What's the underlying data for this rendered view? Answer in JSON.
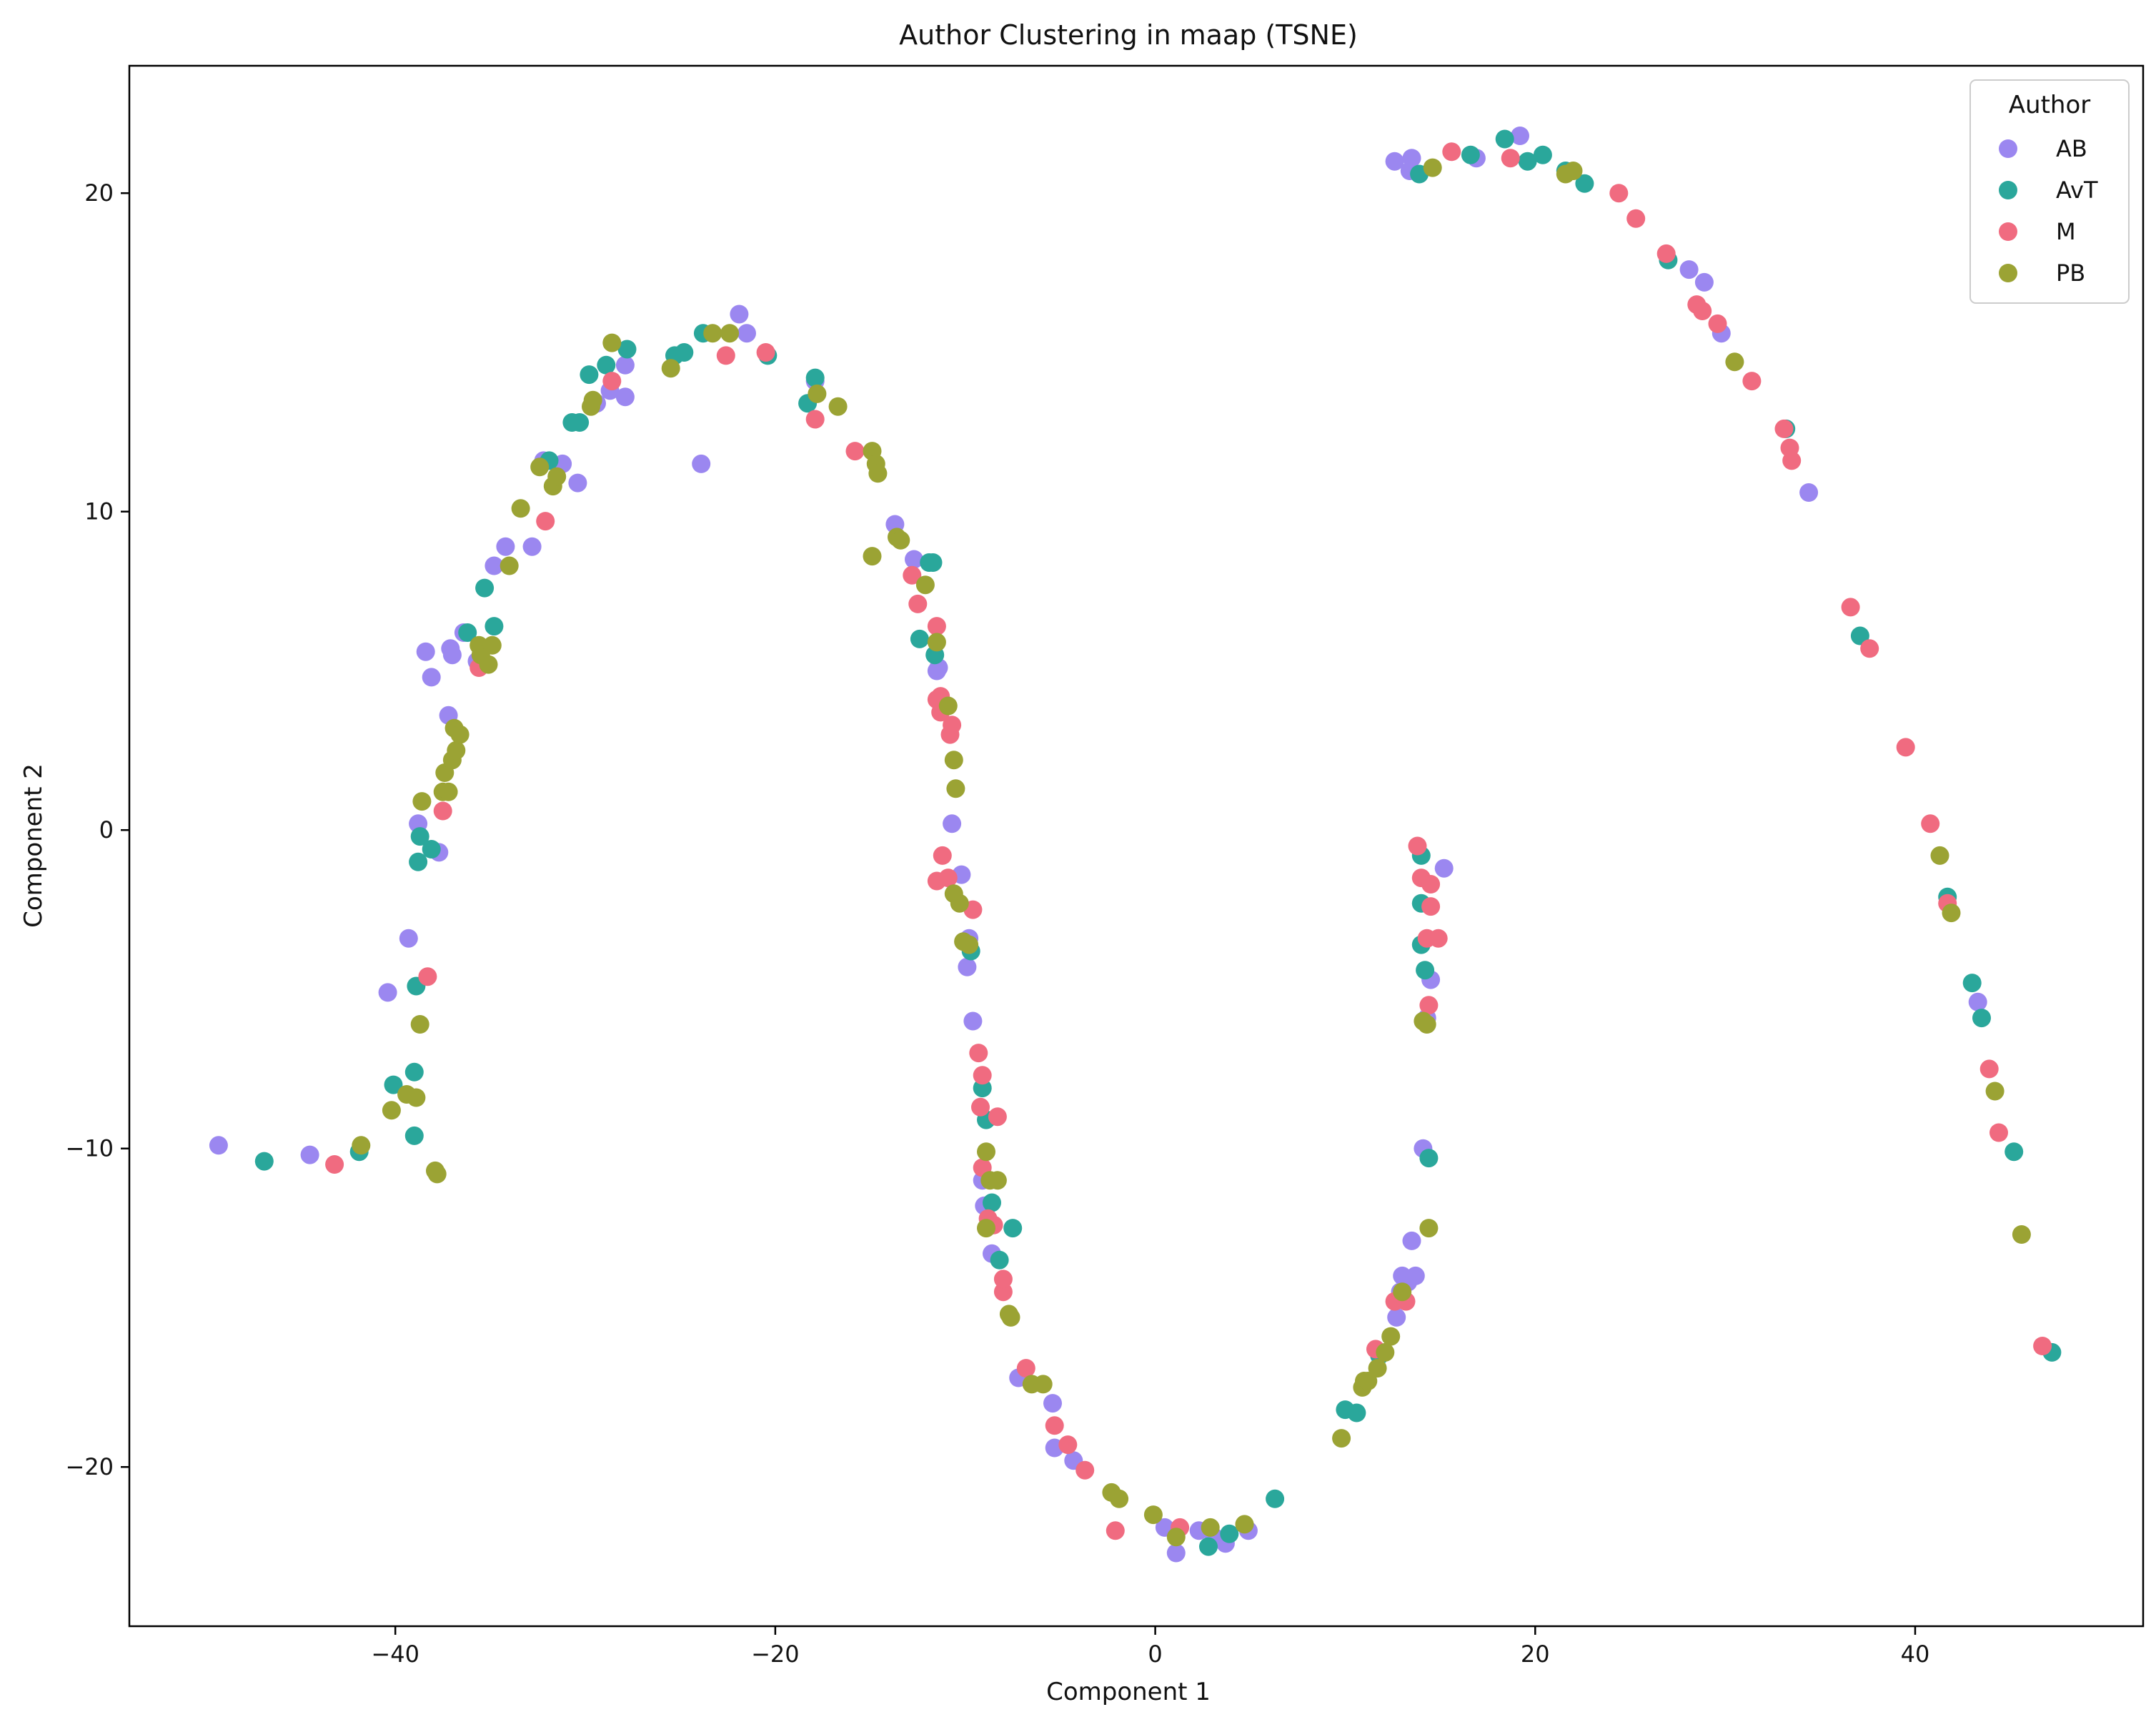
{
  "chart_data": {
    "type": "scatter",
    "title": "Author Clustering in maap (TSNE)",
    "xlabel": "Component 1",
    "ylabel": "Component 2",
    "xlim": [
      -54,
      52
    ],
    "ylim": [
      -25,
      24
    ],
    "xticks": [
      -40,
      -20,
      0,
      20,
      40
    ],
    "xtick_labels": [
      "−40",
      "−20",
      "0",
      "20",
      "40"
    ],
    "yticks": [
      -20,
      -10,
      0,
      10,
      20
    ],
    "ytick_labels": [
      "−20",
      "−10",
      "0",
      "10",
      "20"
    ],
    "grid": false,
    "legend": {
      "title": "Author",
      "position": "top-right"
    },
    "series": [
      {
        "name": "AB",
        "color": "#9b87f0",
        "points": [
          [
            -49.3,
            -9.9
          ],
          [
            -44.5,
            -10.2
          ],
          [
            -40.4,
            -5.1
          ],
          [
            -39.3,
            -3.4
          ],
          [
            -38.8,
            0.2
          ],
          [
            -38.4,
            5.6
          ],
          [
            -38.1,
            4.8
          ],
          [
            -37.7,
            -0.7
          ],
          [
            -37.2,
            3.6
          ],
          [
            -37.1,
            5.7
          ],
          [
            -37.0,
            5.5
          ],
          [
            -36.4,
            6.2
          ],
          [
            -35.7,
            5.3
          ],
          [
            -34.8,
            8.3
          ],
          [
            -34.2,
            8.9
          ],
          [
            -32.8,
            8.9
          ],
          [
            -32.2,
            11.6
          ],
          [
            -31.2,
            11.5
          ],
          [
            -30.4,
            10.9
          ],
          [
            -29.4,
            13.4
          ],
          [
            -28.7,
            13.8
          ],
          [
            -27.9,
            13.6
          ],
          [
            -27.9,
            14.6
          ],
          [
            -23.9,
            11.5
          ],
          [
            -21.9,
            16.2
          ],
          [
            -21.5,
            15.6
          ],
          [
            -17.9,
            14.1
          ],
          [
            -13.7,
            9.6
          ],
          [
            -12.7,
            8.5
          ],
          [
            -11.5,
            5.0
          ],
          [
            -11.4,
            5.1
          ],
          [
            -10.7,
            0.2
          ],
          [
            -10.2,
            -1.4
          ],
          [
            -9.8,
            -3.4
          ],
          [
            -9.9,
            -4.3
          ],
          [
            -9.6,
            -6.0
          ],
          [
            -9.1,
            -11.0
          ],
          [
            -9.0,
            -11.8
          ],
          [
            -8.6,
            -13.3
          ],
          [
            -7.2,
            -17.2
          ],
          [
            -5.4,
            -18.0
          ],
          [
            -5.3,
            -19.4
          ],
          [
            -4.3,
            -19.8
          ],
          [
            0.5,
            -21.9
          ],
          [
            1.1,
            -22.7
          ],
          [
            2.3,
            -22.0
          ],
          [
            3.1,
            -22.2
          ],
          [
            3.7,
            -22.4
          ],
          [
            4.9,
            -22.0
          ],
          [
            12.7,
            -15.3
          ],
          [
            12.9,
            -14.5
          ],
          [
            13.0,
            -14.0
          ],
          [
            13.3,
            -14.2
          ],
          [
            13.5,
            -12.9
          ],
          [
            13.7,
            -14.0
          ],
          [
            14.1,
            -10.0
          ],
          [
            14.3,
            -5.9
          ],
          [
            14.5,
            -4.7
          ],
          [
            15.2,
            -1.2
          ],
          [
            12.6,
            21.0
          ],
          [
            13.4,
            20.7
          ],
          [
            13.5,
            21.1
          ],
          [
            16.9,
            21.1
          ],
          [
            19.2,
            21.8
          ],
          [
            28.1,
            17.6
          ],
          [
            28.9,
            17.2
          ],
          [
            29.8,
            15.6
          ],
          [
            34.4,
            10.6
          ],
          [
            43.3,
            -5.4
          ]
        ]
      },
      {
        "name": "AvT",
        "color": "#2aa79b",
        "points": [
          [
            -46.9,
            -10.4
          ],
          [
            -41.9,
            -10.1
          ],
          [
            -40.1,
            -8.0
          ],
          [
            -39.0,
            -7.6
          ],
          [
            -39.0,
            -9.6
          ],
          [
            -38.8,
            -1.0
          ],
          [
            -38.7,
            -0.2
          ],
          [
            -38.1,
            -0.6
          ],
          [
            -38.9,
            -4.9
          ],
          [
            -36.2,
            6.2
          ],
          [
            -35.3,
            7.6
          ],
          [
            -34.8,
            6.4
          ],
          [
            -31.9,
            11.6
          ],
          [
            -30.7,
            12.8
          ],
          [
            -30.3,
            12.8
          ],
          [
            -29.8,
            14.3
          ],
          [
            -28.9,
            14.6
          ],
          [
            -27.8,
            15.1
          ],
          [
            -25.3,
            14.9
          ],
          [
            -24.8,
            15.0
          ],
          [
            -23.8,
            15.6
          ],
          [
            -20.4,
            14.9
          ],
          [
            -18.3,
            13.4
          ],
          [
            -17.9,
            14.2
          ],
          [
            -11.9,
            8.4
          ],
          [
            -12.4,
            6.0
          ],
          [
            -11.6,
            5.5
          ],
          [
            -11.7,
            8.4
          ],
          [
            -9.7,
            -3.8
          ],
          [
            -9.1,
            -8.1
          ],
          [
            -8.9,
            -9.1
          ],
          [
            -8.6,
            -11.7
          ],
          [
            -8.2,
            -13.5
          ],
          [
            -7.5,
            -12.5
          ],
          [
            2.8,
            -22.5
          ],
          [
            3.9,
            -22.1
          ],
          [
            6.3,
            -21.0
          ],
          [
            10.0,
            -18.2
          ],
          [
            10.6,
            -18.3
          ],
          [
            11.8,
            -16.5
          ],
          [
            14.0,
            -0.8
          ],
          [
            14.0,
            -2.3
          ],
          [
            14.0,
            -3.6
          ],
          [
            14.2,
            -4.4
          ],
          [
            14.4,
            -10.3
          ],
          [
            13.9,
            20.6
          ],
          [
            16.6,
            21.2
          ],
          [
            18.4,
            21.7
          ],
          [
            19.6,
            21.0
          ],
          [
            20.4,
            21.2
          ],
          [
            21.6,
            20.7
          ],
          [
            22.6,
            20.3
          ],
          [
            27.0,
            17.9
          ],
          [
            33.2,
            12.6
          ],
          [
            37.1,
            6.1
          ],
          [
            41.7,
            -2.1
          ],
          [
            43.0,
            -4.8
          ],
          [
            43.5,
            -5.9
          ],
          [
            45.2,
            -10.1
          ],
          [
            47.2,
            -16.4
          ]
        ]
      },
      {
        "name": "M",
        "color": "#f06b80",
        "points": [
          [
            -43.2,
            -10.5
          ],
          [
            -38.3,
            -4.6
          ],
          [
            -37.5,
            0.6
          ],
          [
            -35.6,
            5.1
          ],
          [
            -32.1,
            9.7
          ],
          [
            -28.6,
            14.1
          ],
          [
            -22.6,
            14.9
          ],
          [
            -20.5,
            15.0
          ],
          [
            -17.9,
            12.9
          ],
          [
            -15.8,
            11.9
          ],
          [
            -12.8,
            8.0
          ],
          [
            -12.5,
            7.1
          ],
          [
            -11.5,
            6.4
          ],
          [
            -11.5,
            4.1
          ],
          [
            -11.3,
            4.2
          ],
          [
            -11.3,
            3.7
          ],
          [
            -10.8,
            3.0
          ],
          [
            -10.7,
            3.3
          ],
          [
            -11.2,
            -0.8
          ],
          [
            -11.5,
            -1.6
          ],
          [
            -10.9,
            -1.5
          ],
          [
            -9.6,
            -2.5
          ],
          [
            -9.3,
            -7.0
          ],
          [
            -9.1,
            -7.7
          ],
          [
            -9.2,
            -8.7
          ],
          [
            -8.3,
            -9.0
          ],
          [
            -9.1,
            -10.6
          ],
          [
            -8.8,
            -12.2
          ],
          [
            -8.5,
            -12.4
          ],
          [
            -8.0,
            -14.5
          ],
          [
            -8.0,
            -14.1
          ],
          [
            -6.8,
            -16.9
          ],
          [
            -5.3,
            -18.7
          ],
          [
            -4.6,
            -19.3
          ],
          [
            -3.7,
            -20.1
          ],
          [
            -2.1,
            -22.0
          ],
          [
            1.3,
            -21.9
          ],
          [
            11.6,
            -16.3
          ],
          [
            12.6,
            -14.8
          ],
          [
            13.2,
            -14.8
          ],
          [
            13.8,
            -0.5
          ],
          [
            14.0,
            -1.5
          ],
          [
            14.5,
            -1.7
          ],
          [
            14.5,
            -2.4
          ],
          [
            14.3,
            -3.4
          ],
          [
            14.9,
            -3.4
          ],
          [
            14.4,
            -5.5
          ],
          [
            15.6,
            21.3
          ],
          [
            18.7,
            21.1
          ],
          [
            24.4,
            20.0
          ],
          [
            25.3,
            19.2
          ],
          [
            26.9,
            18.1
          ],
          [
            28.5,
            16.5
          ],
          [
            28.8,
            16.3
          ],
          [
            29.6,
            15.9
          ],
          [
            31.4,
            14.1
          ],
          [
            33.1,
            12.6
          ],
          [
            33.4,
            12.0
          ],
          [
            33.5,
            11.6
          ],
          [
            36.6,
            7.0
          ],
          [
            37.6,
            5.7
          ],
          [
            39.5,
            2.6
          ],
          [
            40.8,
            0.2
          ],
          [
            41.7,
            -2.3
          ],
          [
            43.9,
            -7.5
          ],
          [
            44.4,
            -9.5
          ],
          [
            46.7,
            -16.2
          ]
        ]
      },
      {
        "name": "PB",
        "color": "#9ba334",
        "points": [
          [
            -41.8,
            -9.9
          ],
          [
            -40.2,
            -8.8
          ],
          [
            -39.4,
            -8.3
          ],
          [
            -38.9,
            -8.4
          ],
          [
            -38.7,
            -6.1
          ],
          [
            -38.6,
            0.9
          ],
          [
            -37.9,
            -10.7
          ],
          [
            -37.8,
            -10.8
          ],
          [
            -37.5,
            1.2
          ],
          [
            -37.4,
            1.8
          ],
          [
            -37.2,
            1.2
          ],
          [
            -37.0,
            2.2
          ],
          [
            -36.8,
            2.5
          ],
          [
            -36.9,
            3.2
          ],
          [
            -36.6,
            3.0
          ],
          [
            -35.6,
            5.8
          ],
          [
            -35.5,
            5.5
          ],
          [
            -35.1,
            5.2
          ],
          [
            -34.9,
            5.8
          ],
          [
            -34.0,
            8.3
          ],
          [
            -33.4,
            10.1
          ],
          [
            -32.4,
            11.4
          ],
          [
            -31.7,
            10.8
          ],
          [
            -31.5,
            11.1
          ],
          [
            -29.7,
            13.3
          ],
          [
            -29.6,
            13.5
          ],
          [
            -28.6,
            15.3
          ],
          [
            -25.5,
            14.5
          ],
          [
            -23.3,
            15.6
          ],
          [
            -22.4,
            15.6
          ],
          [
            -17.8,
            13.7
          ],
          [
            -16.7,
            13.3
          ],
          [
            -14.9,
            11.9
          ],
          [
            -14.7,
            11.5
          ],
          [
            -14.6,
            11.2
          ],
          [
            -14.9,
            8.6
          ],
          [
            -13.6,
            9.2
          ],
          [
            -13.4,
            9.1
          ],
          [
            -12.1,
            7.7
          ],
          [
            -11.5,
            5.9
          ],
          [
            -10.9,
            3.9
          ],
          [
            -10.6,
            2.2
          ],
          [
            -10.5,
            1.3
          ],
          [
            -10.6,
            -2.0
          ],
          [
            -10.3,
            -2.3
          ],
          [
            -10.1,
            -3.5
          ],
          [
            -9.8,
            -3.6
          ],
          [
            -8.9,
            -10.1
          ],
          [
            -8.9,
            -12.5
          ],
          [
            -8.7,
            -11.0
          ],
          [
            -8.3,
            -11.0
          ],
          [
            -7.7,
            -15.2
          ],
          [
            -7.6,
            -15.3
          ],
          [
            -6.5,
            -17.4
          ],
          [
            -5.9,
            -17.4
          ],
          [
            -2.3,
            -20.8
          ],
          [
            -1.9,
            -21.0
          ],
          [
            -0.1,
            -21.5
          ],
          [
            1.1,
            -22.2
          ],
          [
            2.9,
            -21.9
          ],
          [
            4.7,
            -21.8
          ],
          [
            9.8,
            -19.1
          ],
          [
            10.9,
            -17.5
          ],
          [
            11.0,
            -17.3
          ],
          [
            11.2,
            -17.3
          ],
          [
            11.7,
            -16.9
          ],
          [
            12.1,
            -16.4
          ],
          [
            12.4,
            -15.9
          ],
          [
            13.0,
            -14.5
          ],
          [
            14.1,
            -6.0
          ],
          [
            14.3,
            -6.1
          ],
          [
            14.4,
            -12.5
          ],
          [
            14.6,
            20.8
          ],
          [
            21.6,
            20.6
          ],
          [
            22.0,
            20.7
          ],
          [
            30.5,
            14.7
          ],
          [
            41.3,
            -0.8
          ],
          [
            41.9,
            -2.6
          ],
          [
            44.2,
            -8.2
          ],
          [
            45.6,
            -12.7
          ]
        ]
      }
    ]
  }
}
